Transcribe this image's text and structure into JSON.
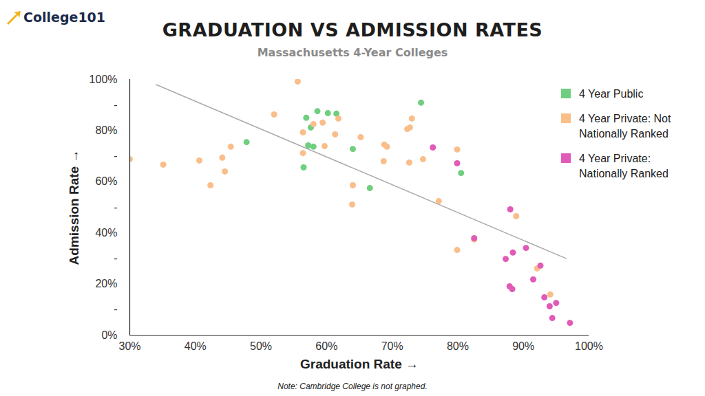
{
  "chart_data": {
    "type": "scatter",
    "logo": "College101",
    "title": "GRADUATION VS ADMISSION RATES",
    "subtitle": "Massachusetts 4-Year Colleges",
    "note": "Note: Cambridge College is not graphed.",
    "x_label": "Graduation Rate",
    "y_label": "Admission Rate",
    "xlim": [
      30,
      100
    ],
    "ylim": [
      0,
      100
    ],
    "xticks": [
      {
        "value": 30,
        "label": "30%"
      },
      {
        "value": 40,
        "label": "40%"
      },
      {
        "value": 50,
        "label": "50%"
      },
      {
        "value": 60,
        "label": "60%"
      },
      {
        "value": 70,
        "label": "70%"
      },
      {
        "value": 80,
        "label": "80%"
      },
      {
        "value": 90,
        "label": "90%"
      },
      {
        "value": 100,
        "label": "100%"
      }
    ],
    "yticks": [
      {
        "value": 0,
        "label": "0%"
      },
      {
        "value": 10,
        "label": "-"
      },
      {
        "value": 20,
        "label": "20%"
      },
      {
        "value": 30,
        "label": "-"
      },
      {
        "value": 40,
        "label": "40%"
      },
      {
        "value": 50,
        "label": "-"
      },
      {
        "value": 60,
        "label": "60%"
      },
      {
        "value": 70,
        "label": "-"
      },
      {
        "value": 80,
        "label": "80%"
      },
      {
        "value": 90,
        "label": "-"
      },
      {
        "value": 100,
        "label": "100%"
      }
    ],
    "grid": false,
    "legend": "right",
    "series": [
      {
        "type": "line",
        "color": "#aaaaaa",
        "x": [
          34,
          96.5
        ],
        "values": [
          98,
          30
        ]
      },
      {
        "name": "4 Year Public",
        "type": "scatter",
        "color": "#6fcf7f",
        "x": [
          47.8,
          56.9,
          57.6,
          58.6,
          60.2,
          61.5,
          57.2,
          58,
          56.5,
          64,
          66.6,
          74.4,
          80.5
        ],
        "values": [
          75.5,
          85,
          81.2,
          87.6,
          86.8,
          86.6,
          74.2,
          73.7,
          65.6,
          72.8,
          57.5,
          90.9,
          63.4
        ]
      },
      {
        "name": "4 Year Private: Not Nationally Ranked",
        "type": "scatter",
        "color": "#f9be8a",
        "x": [
          30,
          35.1,
          40.6,
          44.1,
          44.5,
          42.3,
          45.4,
          52,
          55.6,
          56.4,
          56.4,
          58,
          59.4,
          59.7,
          61.3,
          61.8,
          65.2,
          64,
          63.9,
          68.7,
          68.8,
          69.2,
          72.3,
          72.7,
          73,
          72.6,
          74.7,
          77.1,
          79.9,
          79.9,
          82.5,
          88.9,
          92.1,
          94.1
        ],
        "values": [
          68.8,
          66.7,
          68.3,
          69.4,
          64,
          58.6,
          73.7,
          86.3,
          99.2,
          79.3,
          71.2,
          82.5,
          83.1,
          73.9,
          78.5,
          84.7,
          77.4,
          58.6,
          51.1,
          68,
          74.5,
          73.7,
          80.6,
          81.2,
          84.7,
          67.5,
          68.8,
          52.4,
          72.6,
          33.3,
          37.4,
          46.5,
          26.1,
          15.9
        ]
      },
      {
        "name": "4 Year Private: Nationally Ranked",
        "type": "scatter",
        "color": "#e05bb7",
        "x": [
          76.2,
          79.9,
          82.5,
          88,
          88.4,
          90.4,
          87.3,
          87.9,
          88.3,
          91.5,
          92.6,
          93.2,
          94,
          95,
          94.4,
          97.1
        ],
        "values": [
          73.4,
          67.2,
          37.9,
          49.2,
          32.3,
          34.1,
          29.8,
          19.1,
          18,
          21.8,
          27.2,
          14.8,
          11.3,
          12.6,
          6.7,
          4.8
        ]
      }
    ]
  }
}
